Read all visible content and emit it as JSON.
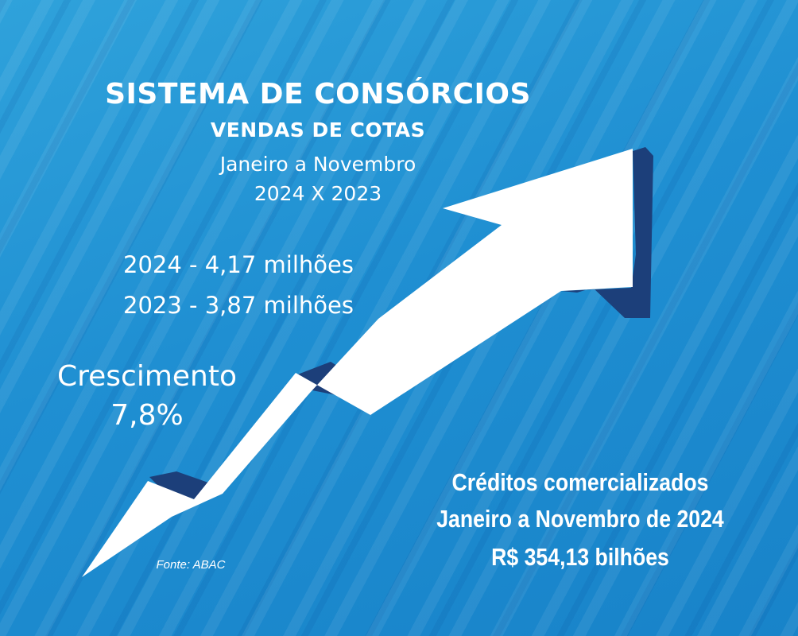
{
  "header": {
    "title": "SISTEMA DE CONSÓRCIOS",
    "subtitle": "VENDAS DE COTAS",
    "period": "Janeiro a Novembro",
    "comparison": "2024 X 2023"
  },
  "stats": {
    "line_2024": "2024 - 4,17 milhões",
    "line_2023": "2023 - 3,87 milhões"
  },
  "growth": {
    "label": "Crescimento",
    "value": "7,8%"
  },
  "credits": {
    "line1": "Créditos comercializados",
    "line2": "Janeiro a Novembro de 2024",
    "line3": "R$ 354,13 bilhões"
  },
  "source": "Fonte: ABAC",
  "colors": {
    "background": "#1f8fd2",
    "arrow": "#ffffff",
    "arrow_shadow": "#1c3f7a",
    "text": "#ffffff"
  },
  "icons": {
    "arrow": "trend-up-arrow-icon"
  }
}
